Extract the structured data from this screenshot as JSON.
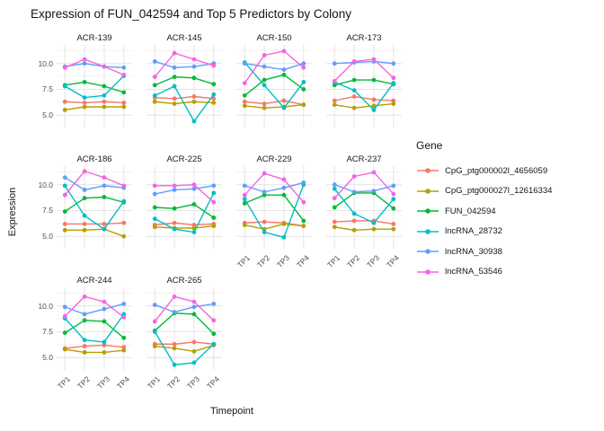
{
  "title": "Expression of FUN_042594 and Top 5 Predictors by Colony",
  "chart_data": {
    "type": "line",
    "title": "Expression of FUN_042594 and Top 5 Predictors by Colony",
    "xlabel": "Timepoint",
    "ylabel": "Expression",
    "legend_title": "Gene",
    "facet_by": "Colony",
    "x": [
      "TP1",
      "TP2",
      "TP3",
      "TP4"
    ],
    "ylim": [
      3.8,
      11.8
    ],
    "y_major_ticks": [
      5.0,
      7.5,
      10.0
    ],
    "y_minor_ticks": [
      3.75,
      6.25,
      8.75,
      11.25
    ],
    "y_tick_labels": [
      "5.0",
      "7.5",
      "10.0"
    ],
    "grid": true,
    "legend_position": "right",
    "series": [
      {
        "name": "CpG_ptg000002l_4656059",
        "color": "#F8766D"
      },
      {
        "name": "CpG_ptg000027l_12616334",
        "color": "#B79F00"
      },
      {
        "name": "FUN_042594",
        "color": "#00BA38"
      },
      {
        "name": "lncRNA_28732",
        "color": "#00BFC4"
      },
      {
        "name": "lncRNA_30938",
        "color": "#619CFF"
      },
      {
        "name": "lncRNA_53546",
        "color": "#F564E3"
      }
    ],
    "facets": [
      {
        "name": "ACR-139",
        "values": {
          "CpG_ptg000002l_4656059": [
            6.3,
            6.2,
            6.3,
            6.2
          ],
          "CpG_ptg000027l_12616334": [
            5.5,
            5.8,
            5.8,
            5.8
          ],
          "FUN_042594": [
            7.9,
            8.2,
            7.8,
            7.2
          ],
          "lncRNA_28732": [
            7.8,
            6.7,
            6.9,
            8.8
          ],
          "lncRNA_30938": [
            9.7,
            10.0,
            9.7,
            9.6
          ],
          "lncRNA_53546": [
            9.6,
            10.4,
            9.7,
            8.9
          ]
        }
      },
      {
        "name": "ACR-145",
        "values": {
          "CpG_ptg000002l_4656059": [
            6.7,
            6.6,
            6.8,
            6.6
          ],
          "CpG_ptg000027l_12616334": [
            6.3,
            6.1,
            6.3,
            6.2
          ],
          "FUN_042594": [
            7.9,
            8.7,
            8.6,
            8.0
          ],
          "lncRNA_28732": [
            6.9,
            7.8,
            4.4,
            7.0
          ],
          "lncRNA_30938": [
            10.2,
            9.6,
            9.7,
            10.0
          ],
          "lncRNA_53546": [
            8.7,
            11.0,
            10.4,
            9.8
          ]
        }
      },
      {
        "name": "ACR-150",
        "values": {
          "CpG_ptg000002l_4656059": [
            6.3,
            6.1,
            6.4,
            6.0
          ],
          "CpG_ptg000027l_12616334": [
            5.9,
            5.7,
            5.8,
            6.0
          ],
          "FUN_042594": [
            6.9,
            8.4,
            8.9,
            7.5
          ],
          "lncRNA_28732": [
            10.1,
            7.9,
            5.7,
            8.2
          ],
          "lncRNA_30938": [
            10.0,
            9.7,
            9.4,
            10.0
          ],
          "lncRNA_53546": [
            8.1,
            10.8,
            11.2,
            9.6
          ]
        }
      },
      {
        "name": "ACR-173",
        "values": {
          "CpG_ptg000002l_4656059": [
            6.4,
            6.8,
            6.5,
            6.4
          ],
          "CpG_ptg000027l_12616334": [
            6.0,
            5.7,
            5.9,
            6.1
          ],
          "FUN_042594": [
            7.9,
            8.4,
            8.4,
            8.0
          ],
          "lncRNA_28732": [
            8.2,
            7.4,
            5.5,
            8.1
          ],
          "lncRNA_30938": [
            10.0,
            10.1,
            10.2,
            10.0
          ],
          "lncRNA_53546": [
            8.3,
            10.2,
            10.4,
            8.6
          ]
        }
      },
      {
        "name": "ACR-186",
        "values": {
          "CpG_ptg000002l_4656059": [
            6.2,
            6.2,
            6.2,
            6.3
          ],
          "CpG_ptg000027l_12616334": [
            5.6,
            5.6,
            5.7,
            5.0
          ],
          "FUN_042594": [
            7.4,
            8.7,
            8.8,
            8.3
          ],
          "lncRNA_28732": [
            9.9,
            7.0,
            5.7,
            8.4
          ],
          "lncRNA_30938": [
            10.7,
            9.5,
            9.9,
            9.7
          ],
          "lncRNA_53546": [
            9.0,
            11.3,
            10.7,
            9.9
          ]
        }
      },
      {
        "name": "ACR-225",
        "values": {
          "CpG_ptg000002l_4656059": [
            6.1,
            6.3,
            6.1,
            6.2
          ],
          "CpG_ptg000027l_12616334": [
            5.9,
            5.8,
            5.8,
            6.0
          ],
          "FUN_042594": [
            7.8,
            7.7,
            8.1,
            6.8
          ],
          "lncRNA_28732": [
            6.7,
            5.7,
            5.4,
            9.2
          ],
          "lncRNA_30938": [
            9.1,
            9.5,
            9.6,
            9.9
          ],
          "lncRNA_53546": [
            9.9,
            9.9,
            10.0,
            8.3
          ]
        }
      },
      {
        "name": "ACR-229",
        "values": {
          "CpG_ptg000002l_4656059": [
            6.3,
            6.4,
            6.3,
            6.0
          ],
          "CpG_ptg000027l_12616334": [
            6.1,
            5.7,
            6.2,
            6.0
          ],
          "FUN_042594": [
            8.2,
            9.0,
            9.0,
            6.5
          ],
          "lncRNA_28732": [
            8.6,
            5.4,
            4.9,
            10.0
          ],
          "lncRNA_30938": [
            9.9,
            9.3,
            9.7,
            10.2
          ],
          "lncRNA_53546": [
            9.0,
            11.1,
            10.5,
            8.3
          ]
        }
      },
      {
        "name": "ACR-237",
        "values": {
          "CpG_ptg000002l_4656059": [
            6.4,
            6.5,
            6.5,
            6.2
          ],
          "CpG_ptg000027l_12616334": [
            5.9,
            5.6,
            5.7,
            5.7
          ],
          "FUN_042594": [
            7.8,
            9.2,
            9.2,
            7.7
          ],
          "lncRNA_28732": [
            9.6,
            7.2,
            6.3,
            8.6
          ],
          "lncRNA_30938": [
            10.0,
            9.3,
            9.4,
            9.9
          ],
          "lncRNA_53546": [
            8.7,
            10.8,
            11.2,
            9.1
          ]
        }
      },
      {
        "name": "ACR-244",
        "values": {
          "CpG_ptg000002l_4656059": [
            5.9,
            6.1,
            6.2,
            6.0
          ],
          "CpG_ptg000027l_12616334": [
            5.8,
            5.5,
            5.5,
            5.7
          ],
          "FUN_042594": [
            7.4,
            8.6,
            8.5,
            6.9
          ],
          "lncRNA_28732": [
            8.8,
            6.7,
            6.5,
            9.2
          ],
          "lncRNA_30938": [
            9.9,
            9.2,
            9.7,
            10.2
          ],
          "lncRNA_53546": [
            9.0,
            10.9,
            10.4,
            8.9
          ]
        }
      },
      {
        "name": "ACR-265",
        "values": {
          "CpG_ptg000002l_4656059": [
            6.3,
            6.3,
            6.5,
            6.3
          ],
          "CpG_ptg000027l_12616334": [
            6.1,
            5.9,
            5.6,
            6.2
          ],
          "FUN_042594": [
            7.6,
            9.3,
            9.2,
            7.3
          ],
          "lncRNA_28732": [
            7.5,
            4.3,
            4.5,
            6.3
          ],
          "lncRNA_30938": [
            10.1,
            9.4,
            9.9,
            10.2
          ],
          "lncRNA_53546": [
            8.5,
            10.9,
            10.4,
            8.6
          ]
        }
      }
    ],
    "style": {
      "grid_major_color": "#e4e4e4",
      "grid_minor_color": "#f0f0f0",
      "tick_text_color": "#4d4d4d",
      "text_color": "#141414",
      "background": "#ffffff"
    }
  }
}
